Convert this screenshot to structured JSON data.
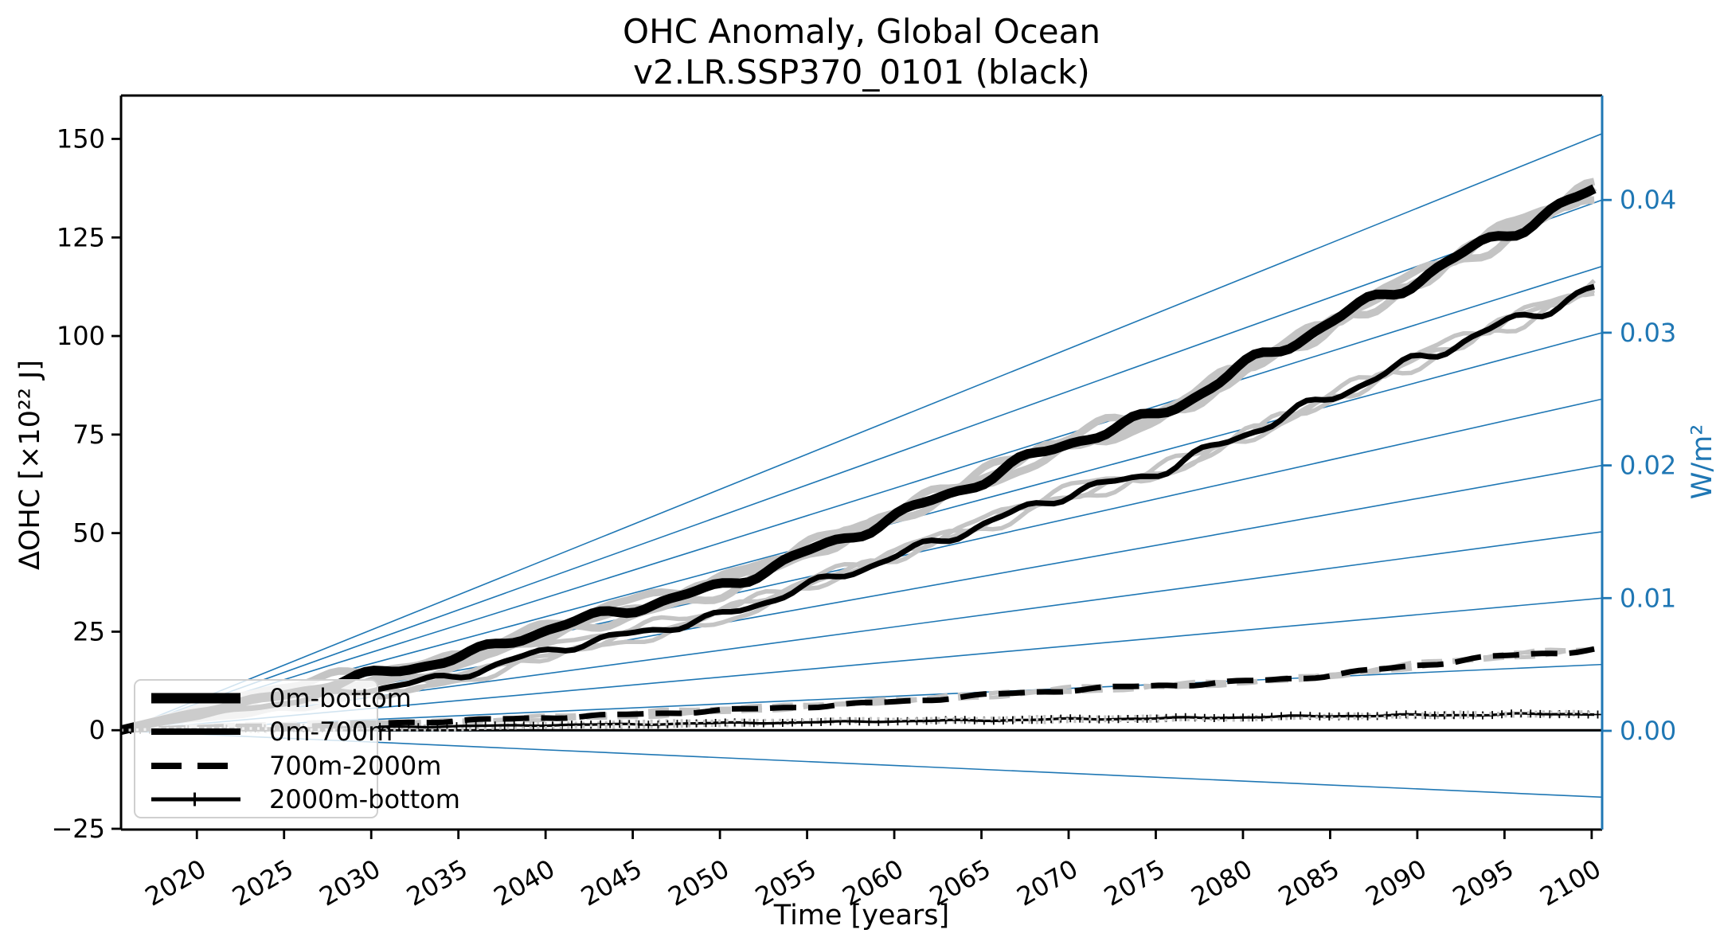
{
  "title": {
    "line1": "OHC Anomaly, Global Ocean",
    "line2": "v2.LR.SSP370_0101 (black)"
  },
  "axes": {
    "x": {
      "label": "Time [years]",
      "min": 2015.65,
      "max": 2100.6,
      "tick_values": [
        2020,
        2025,
        2030,
        2035,
        2040,
        2045,
        2050,
        2055,
        2060,
        2065,
        2070,
        2075,
        2080,
        2085,
        2090,
        2095,
        2100
      ],
      "tick_labels": [
        "2020",
        "2025",
        "2030",
        "2035",
        "2040",
        "2045",
        "2050",
        "2055",
        "2060",
        "2065",
        "2070",
        "2075",
        "2080",
        "2085",
        "2090",
        "2095",
        "2100"
      ]
    },
    "y_left": {
      "label": "ΔOHC [×10²² J]",
      "min": -25.2,
      "max": 161.0,
      "tick_values": [
        -25,
        0,
        25,
        50,
        75,
        100,
        125,
        150
      ],
      "tick_labels": [
        "−25",
        "0",
        "25",
        "50",
        "75",
        "100",
        "125",
        "150"
      ]
    },
    "y_right": {
      "label": "W/m²",
      "color": "#1f77b4",
      "min": -0.00744,
      "max": 0.04787,
      "tick_values": [
        0.0,
        0.01,
        0.02,
        0.03,
        0.04
      ],
      "tick_labels": [
        "0.00",
        "0.01",
        "0.02",
        "0.03",
        "0.04"
      ]
    }
  },
  "legend": {
    "entries": [
      {
        "label": "0m-bottom",
        "style": "solid-thick"
      },
      {
        "label": "0m-700m",
        "style": "solid"
      },
      {
        "label": "700m-2000m",
        "style": "dashed"
      },
      {
        "label": "2000m-bottom",
        "style": "solid-plus-marker"
      }
    ]
  },
  "chart_data": {
    "type": "line",
    "title": "OHC Anomaly, Global Ocean / v2.LR.SSP370_0101 (black)",
    "xlabel": "Time [years]",
    "ylabel_left": "ΔOHC [×10²² J]",
    "ylabel_right": "W/m²",
    "x_range_years": [
      2015.65,
      2100.6
    ],
    "ylim_left": [
      -25.2,
      161.0
    ],
    "ylim_right": [
      -0.00744,
      0.04787
    ],
    "anchor_years": [
      2015.65,
      2020,
      2025,
      2030,
      2035,
      2040,
      2045,
      2050,
      2055,
      2060,
      2065,
      2070,
      2075,
      2080,
      2085,
      2090,
      2095,
      2100.6
    ],
    "series": [
      {
        "name": "0m-bottom",
        "color": "#000000",
        "style": "solid",
        "lw": 12,
        "values": [
          0,
          4.5,
          9,
          14,
          18.5,
          25.5,
          31,
          36.5,
          45,
          54,
          63.5,
          73,
          80,
          92,
          103.5,
          114.5,
          126,
          137.5
        ]
      },
      {
        "name": "0m-700m",
        "color": "#000000",
        "style": "solid",
        "lw": 7,
        "values": [
          0,
          3.5,
          7,
          10.5,
          14,
          20,
          24.5,
          29,
          36.5,
          44,
          52,
          60,
          65.5,
          75,
          84.5,
          94,
          103,
          112.5
        ]
      },
      {
        "name": "700m-2000m",
        "color": "#000000",
        "style": "dashed",
        "lw": 7,
        "values": [
          0,
          0.7,
          1.1,
          1.7,
          2.4,
          3.2,
          4.0,
          5.0,
          6.0,
          7.2,
          8.8,
          10.2,
          11.3,
          12.3,
          14.0,
          16.5,
          18.8,
          20.6
        ]
      },
      {
        "name": "2000m-bottom",
        "color": "#000000",
        "style": "solid-plus",
        "lw": 3.2,
        "values": [
          0,
          0.3,
          0.5,
          0.8,
          1.0,
          1.3,
          1.5,
          1.8,
          2.0,
          2.3,
          2.5,
          2.8,
          3.0,
          3.3,
          3.6,
          3.8,
          4.0,
          4.2
        ]
      }
    ],
    "ensemble_gray": {
      "color": "#c4c4c4",
      "member_count": 3,
      "note": "other ensemble members drawn in light gray beneath the black member",
      "slow_amp": [
        2.4,
        2.0,
        0.7,
        0.9
      ],
      "member_wiggle_phase": [
        1.9,
        3.8,
        5.6
      ],
      "member_offset_phase": [
        0.6,
        3.5,
        2.2
      ]
    },
    "wiggle": [
      {
        "a1": 1.5,
        "p1": 6.3,
        "a2": 0.7,
        "p2": 3.4,
        "ph": 0.3
      },
      {
        "a1": 1.3,
        "p1": 5.6,
        "a2": 0.65,
        "p2": 3.1,
        "ph": 1.2
      },
      {
        "a1": 0.35,
        "p1": 7.2,
        "a2": 0.18,
        "p2": 3.6,
        "ph": 2.1
      },
      {
        "a1": 0.18,
        "p1": 6.6,
        "a2": 0.1,
        "p2": 3.2,
        "ph": 0.7
      }
    ],
    "flux_reference_lines": {
      "color": "#1f77b4",
      "values_w_m2": [
        0.045,
        0.04,
        0.035,
        0.03,
        0.025,
        0.02,
        0.015,
        0.01,
        0.005,
        0.0,
        -0.005
      ],
      "origin": "left edge at 0 W/m²"
    },
    "zero_line_left_axis": 0,
    "grid": false,
    "legend_position": "lower left"
  }
}
